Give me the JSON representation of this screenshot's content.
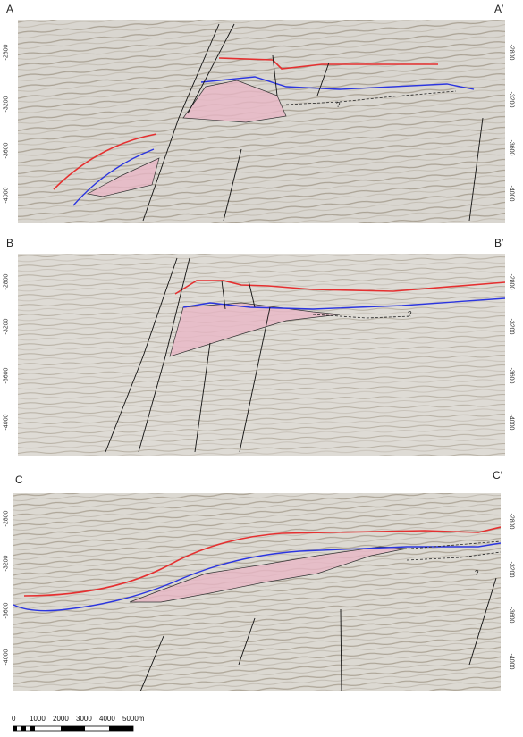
{
  "panels": [
    {
      "id": "A",
      "left_label": "A",
      "right_label": "A′",
      "left_ticks": [
        "-2800",
        "-3200",
        "-3600",
        "-4000"
      ],
      "right_ticks": [
        "-2800",
        "-3200",
        "-3600",
        "-4000"
      ],
      "question_mark": "?"
    },
    {
      "id": "B",
      "left_label": "B",
      "right_label": "B′",
      "left_ticks": [
        "-2800",
        "-3200",
        "-3600",
        "-4000"
      ],
      "right_ticks": [
        "-2800",
        "-3200",
        "-3600",
        "-4000"
      ],
      "question_mark": "?"
    },
    {
      "id": "C",
      "left_label": "C",
      "right_label": "C′",
      "left_ticks": [
        "-2800",
        "-3200",
        "-3600",
        "-4000"
      ],
      "right_ticks": [
        "-2800",
        "-3200",
        "-3600",
        "-4000"
      ],
      "question_mark": "?"
    }
  ],
  "scale_bar": {
    "labels": [
      "0",
      "1000",
      "2000",
      "3000",
      "4000",
      "5000m"
    ]
  },
  "colors": {
    "red_horizon": "#e53030",
    "blue_horizon": "#2b35e0",
    "body_fill": "#e8b6c6",
    "fault": "#111111"
  }
}
